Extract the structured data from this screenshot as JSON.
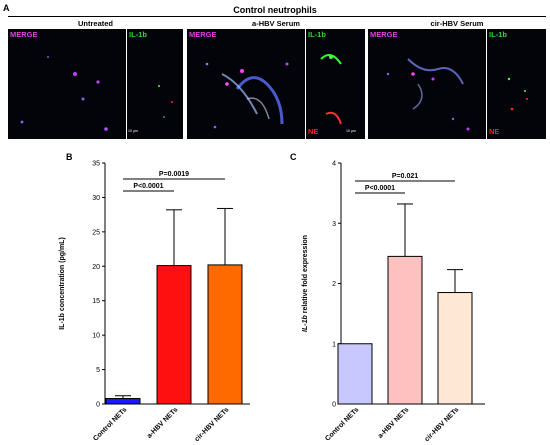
{
  "panels": {
    "a": "A",
    "b": "B",
    "c": "C"
  },
  "figure_a": {
    "title": "Control neutrophils",
    "columns": [
      "Untreated",
      "a-HBV Serum",
      "cir-HBV Serum"
    ],
    "channels": {
      "merge": "MERGE",
      "il1b": "IL-1b",
      "ne": "NE"
    },
    "scale_bar": "10 µm",
    "colors": {
      "merge": "#e040e0",
      "il1b": "#3cd23c",
      "ne": "#ff2020",
      "background": "#03030a"
    }
  },
  "chart_data": [
    {
      "type": "bar",
      "categories": [
        "Control NETs",
        "a-HBV NETs",
        "cir-HBV NETs"
      ],
      "values": [
        0.8,
        20.1,
        20.2
      ],
      "error": [
        0.4,
        8.1,
        8.2
      ],
      "colors": [
        "#1a1aff",
        "#ff1010",
        "#ff6a00"
      ],
      "xlabel": "",
      "ylabel": "IL-1b concentration (pg/mL)",
      "ylim": [
        0,
        35
      ],
      "yticks": [
        0,
        5,
        10,
        15,
        20,
        25,
        30,
        35
      ],
      "annotations": [
        {
          "text": "P<0.0001",
          "from": 0,
          "to": 1
        },
        {
          "text": "P=0.0019",
          "from": 0,
          "to": 2
        }
      ]
    },
    {
      "type": "bar",
      "categories": [
        "Control NETs",
        "a-HBV NETs",
        "cir-HBV NETs"
      ],
      "values": [
        1.0,
        2.45,
        1.85
      ],
      "error": [
        0.0,
        0.87,
        0.38
      ],
      "colors": [
        "#c8c8ff",
        "#ffc0c0",
        "#ffe8d4"
      ],
      "xlabel": "",
      "ylabel_italic": "IL-1b",
      "ylabel": " relative fold expression",
      "ylim": [
        0,
        4
      ],
      "yticks": [
        0,
        1,
        2,
        3,
        4
      ],
      "annotations": [
        {
          "text": "P<0.0001",
          "from": 0,
          "to": 1
        },
        {
          "text": "P=0.021",
          "from": 0,
          "to": 2
        }
      ]
    }
  ]
}
